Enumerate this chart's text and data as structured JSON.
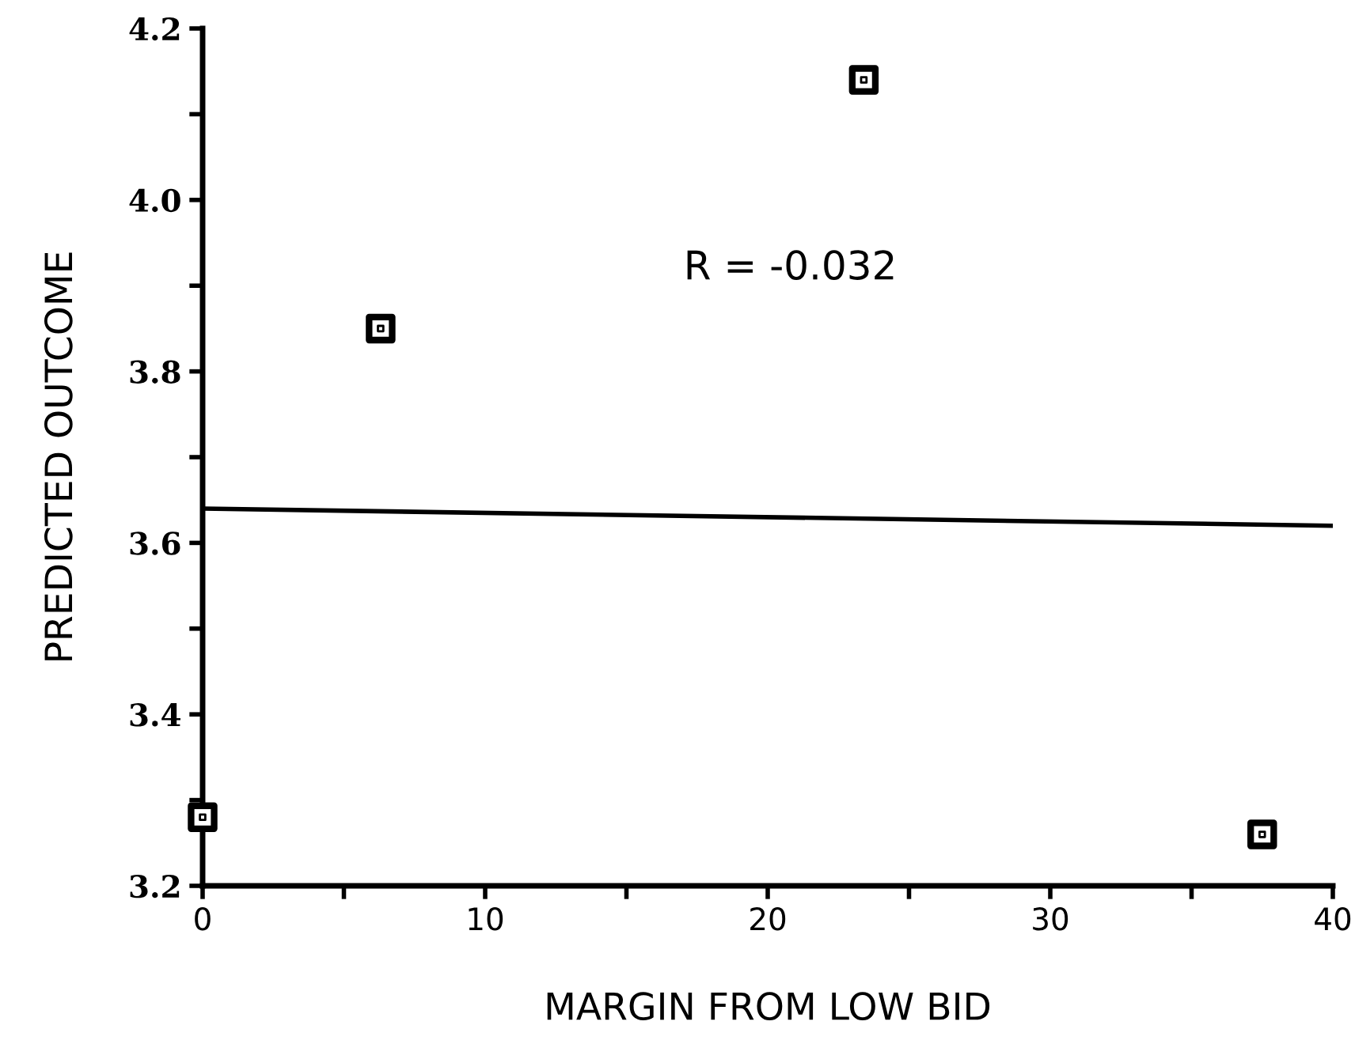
{
  "chart_data": {
    "type": "scatter",
    "xlabel": "MARGIN FROM LOW BID",
    "ylabel": "PREDICTED OUTCOME",
    "annotations": [
      "R = -0.032"
    ],
    "marker": "square",
    "xlim": [
      0,
      40
    ],
    "ylim": [
      3.2,
      4.2
    ],
    "xticks": [
      0,
      {
        "value": 5,
        "label": null
      },
      10,
      {
        "value": 15,
        "label": null
      },
      20,
      {
        "value": 25,
        "label": null
      },
      30,
      {
        "value": 35,
        "label": null
      },
      40
    ],
    "yticks": [
      3.2,
      {
        "value": 3.3,
        "label": null
      },
      3.4,
      {
        "value": 3.5,
        "label": null
      },
      3.6,
      {
        "value": 3.7,
        "label": null
      },
      3.8,
      {
        "value": 3.9,
        "label": null
      },
      {
        "value": 4.0,
        "label": "4.0"
      },
      {
        "value": 4.1,
        "label": null
      },
      4.2
    ],
    "grid": false,
    "legend": false,
    "series": [
      {
        "color": "#000000",
        "x": [
          0,
          6.3,
          23.4,
          37.5
        ],
        "values": [
          3.28,
          3.85,
          4.14,
          3.26
        ]
      },
      {
        "type": "line",
        "line_style": "solid",
        "marker": "none",
        "color": "#000000",
        "x": [
          0,
          40
        ],
        "values": [
          3.64,
          3.62
        ]
      }
    ]
  }
}
